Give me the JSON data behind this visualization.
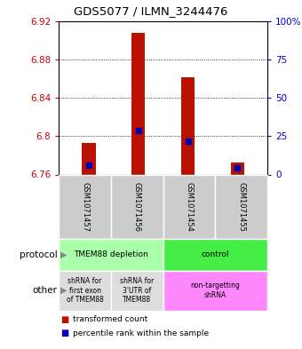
{
  "title": "GDS5077 / ILMN_3244476",
  "samples": [
    "GSM1071457",
    "GSM1071456",
    "GSM1071454",
    "GSM1071455"
  ],
  "bar_values": [
    6.793,
    6.908,
    6.862,
    6.773
  ],
  "bar_base": 6.76,
  "percentile_values": [
    6.77,
    6.806,
    6.795,
    6.767
  ],
  "ylim": [
    6.76,
    6.92
  ],
  "yticks_left": [
    6.76,
    6.8,
    6.84,
    6.88,
    6.92
  ],
  "yticks_right_labels": [
    "0",
    "25",
    "50",
    "75",
    "100%"
  ],
  "right_axis_values": [
    6.76,
    6.8,
    6.84,
    6.88,
    6.92
  ],
  "protocol_groups": [
    {
      "start": 0,
      "end": 2,
      "color": "#AAFFAA",
      "label": "TMEM88 depletion"
    },
    {
      "start": 2,
      "end": 4,
      "color": "#44EE44",
      "label": "control"
    }
  ],
  "other_groups": [
    {
      "start": 0,
      "end": 1,
      "color": "#DDDDDD",
      "label": "shRNA for\nfirst exon\nof TMEM88"
    },
    {
      "start": 1,
      "end": 2,
      "color": "#DDDDDD",
      "label": "shRNA for\n3'UTR of\nTMEM88"
    },
    {
      "start": 2,
      "end": 4,
      "color": "#FF88FF",
      "label": "non-targetting\nshRNA"
    }
  ],
  "sample_bg_color": "#CCCCCC",
  "bar_color": "#BB1100",
  "percentile_color": "#0000BB",
  "bg_color": "#FFFFFF",
  "label_color_left": "#CC0000",
  "label_color_right": "#0000CC",
  "legend_red_label": "transformed count",
  "legend_blue_label": "percentile rank within the sample"
}
